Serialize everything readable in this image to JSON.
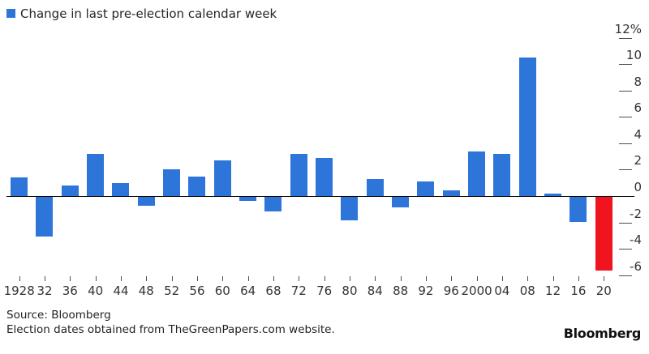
{
  "legend": {
    "label": "Change in last pre-election calendar week"
  },
  "chart_data": {
    "type": "bar",
    "title": "Change in last pre-election calendar week",
    "categories": [
      "1928",
      "32",
      "36",
      "40",
      "44",
      "48",
      "52",
      "56",
      "60",
      "64",
      "68",
      "72",
      "76",
      "80",
      "84",
      "88",
      "92",
      "96",
      "2000",
      "04",
      "08",
      "12",
      "16",
      "20"
    ],
    "values": [
      1.4,
      -3.0,
      0.8,
      3.2,
      1.0,
      -0.7,
      2.0,
      1.5,
      2.7,
      -0.3,
      -1.1,
      3.2,
      2.9,
      -1.8,
      1.3,
      -0.8,
      1.1,
      0.4,
      3.4,
      3.2,
      10.5,
      0.2,
      -1.9,
      -5.6
    ],
    "highlight_index": 23,
    "colors": {
      "bar": "#2d75d9",
      "highlight": "#f0141f"
    },
    "xlabel": "",
    "ylabel": "",
    "ylim": [
      -7,
      12.5
    ],
    "yticks": [
      12,
      10,
      8,
      6,
      4,
      2,
      0,
      -2,
      -4,
      -6
    ],
    "ytick_labels": [
      "12%",
      "10",
      "8",
      "6",
      "4",
      "2",
      "0",
      "-2",
      "-4",
      "-6"
    ],
    "axis_side": "right",
    "grid": false,
    "legend_position": "top-left"
  },
  "footer": {
    "source": "Source: Bloomberg",
    "note": "Election dates obtained from TheGreenPapers.com website.",
    "logo": "Bloomberg"
  }
}
